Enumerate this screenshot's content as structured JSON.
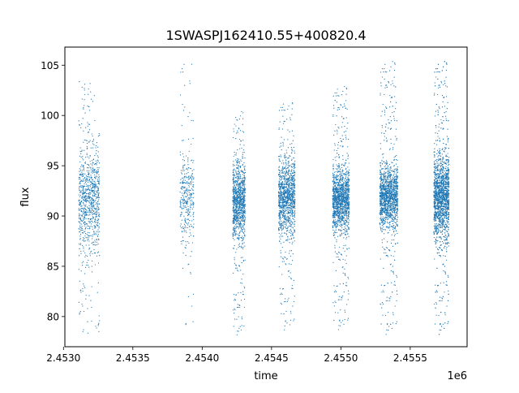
{
  "chart_data": {
    "type": "scatter",
    "title": "1SWASPJ162410.55+400820.4",
    "xlabel": "time",
    "ylabel": "flux",
    "x_offset_label": "1e6",
    "xlim": [
      2.45301,
      2.45591
    ],
    "ylim": [
      77.0,
      106.8
    ],
    "x_ticks": [
      {
        "value": 2.453,
        "label": "2.4530"
      },
      {
        "value": 2.4535,
        "label": "2.4535"
      },
      {
        "value": 2.454,
        "label": "2.4540"
      },
      {
        "value": 2.4545,
        "label": "2.4545"
      },
      {
        "value": 2.455,
        "label": "2.4550"
      },
      {
        "value": 2.4555,
        "label": "2.4555"
      }
    ],
    "y_ticks": [
      {
        "value": 80,
        "label": "80"
      },
      {
        "value": 85,
        "label": "85"
      },
      {
        "value": 90,
        "label": "90"
      },
      {
        "value": 95,
        "label": "95"
      },
      {
        "value": 100,
        "label": "100"
      },
      {
        "value": 105,
        "label": "105"
      }
    ],
    "grid": false,
    "legend": "none",
    "marker_color": "#1f77b4",
    "series": [
      {
        "x_unit": "1e6",
        "segments": [
          {
            "x_start": 2.45311,
            "x_end": 2.45326,
            "flux_center": 91.5,
            "flux_core_spread": 2.5,
            "flux_min": 78.3,
            "flux_max": 103.5,
            "density": 900
          },
          {
            "x_start": 2.45384,
            "x_end": 2.45394,
            "flux_center": 92.0,
            "flux_core_spread": 2.0,
            "flux_min": 78.0,
            "flux_max": 105.5,
            "density": 350
          },
          {
            "x_start": 2.45422,
            "x_end": 2.45431,
            "flux_center": 91.5,
            "flux_core_spread": 1.8,
            "flux_min": 78.0,
            "flux_max": 100.5,
            "density": 1100
          },
          {
            "x_start": 2.45455,
            "x_end": 2.45467,
            "flux_center": 92.0,
            "flux_core_spread": 1.8,
            "flux_min": 78.5,
            "flux_max": 101.5,
            "density": 1200
          },
          {
            "x_start": 2.45494,
            "x_end": 2.45506,
            "flux_center": 91.7,
            "flux_core_spread": 1.5,
            "flux_min": 78.5,
            "flux_max": 103.0,
            "density": 1500
          },
          {
            "x_start": 2.45528,
            "x_end": 2.45541,
            "flux_center": 92.0,
            "flux_core_spread": 1.5,
            "flux_min": 78.0,
            "flux_max": 105.5,
            "density": 1600
          },
          {
            "x_start": 2.45567,
            "x_end": 2.45578,
            "flux_center": 92.0,
            "flux_core_spread": 2.0,
            "flux_min": 78.0,
            "flux_max": 105.5,
            "density": 2200
          }
        ]
      }
    ]
  }
}
